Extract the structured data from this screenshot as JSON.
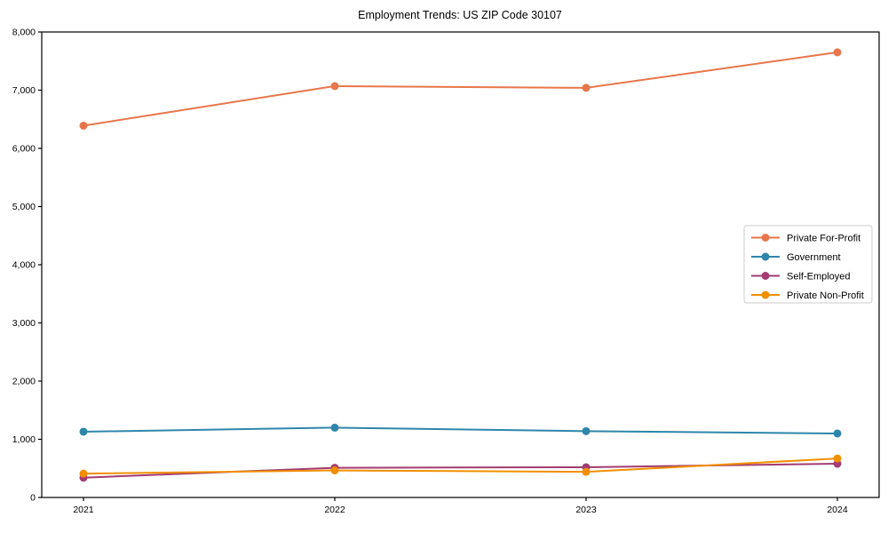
{
  "chart_data": {
    "type": "line",
    "title": "Employment Trends: US ZIP Code 30107",
    "x": [
      "2021",
      "2022",
      "2023",
      "2024"
    ],
    "series": [
      {
        "name": "Private For-Profit",
        "color": "#E8764B",
        "values": [
          6390,
          7070,
          7040,
          7650
        ]
      },
      {
        "name": "Government",
        "color": "#2E86AB",
        "values": [
          1130,
          1200,
          1140,
          1100
        ]
      },
      {
        "name": "Self-Employed",
        "color": "#A23B72",
        "values": [
          340,
          510,
          520,
          580
        ]
      },
      {
        "name": "Private Non-Profit",
        "color": "#F18F01",
        "values": [
          410,
          465,
          440,
          670
        ]
      }
    ],
    "xlabel": "",
    "ylabel": "",
    "ylim": [
      0,
      8000
    ],
    "ytick_step": 1000,
    "ytick_labels": [
      "0",
      "1,000",
      "2,000",
      "3,000",
      "4,000",
      "5,000",
      "6,000",
      "7,000",
      "8,000"
    ],
    "grid": false,
    "legend_position": "center right",
    "axis_color": "#000000",
    "legend_border_color": "#cccccc",
    "background_color": "#ffffff"
  }
}
